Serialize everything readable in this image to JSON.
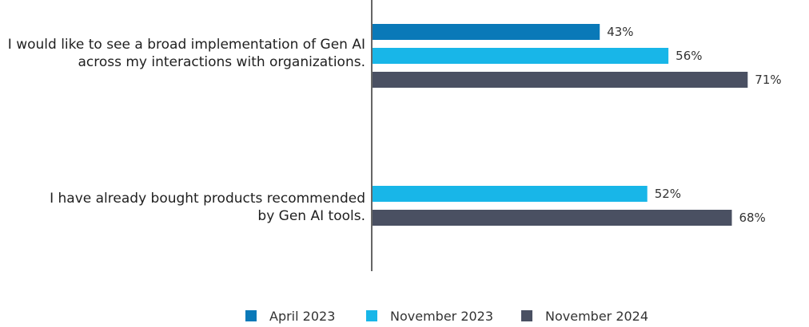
{
  "chart_data": {
    "type": "bar",
    "orientation": "horizontal",
    "categories": [
      [
        "I would like to see a broad implementation of Gen AI",
        "across my interactions with organizations."
      ],
      [
        "I have already bought products recommended",
        "by Gen AI tools."
      ]
    ],
    "series": [
      {
        "name": "April 2023",
        "color": "#0a79b8",
        "values": [
          43,
          null
        ]
      },
      {
        "name": "November 2023",
        "color": "#18b6e8",
        "values": [
          56,
          52
        ]
      },
      {
        "name": "November 2024",
        "color": "#4a5062",
        "values": [
          71,
          68
        ]
      }
    ],
    "value_suffix": "%",
    "xlim": [
      0,
      100
    ],
    "grid": false,
    "legend_position": "bottom"
  }
}
